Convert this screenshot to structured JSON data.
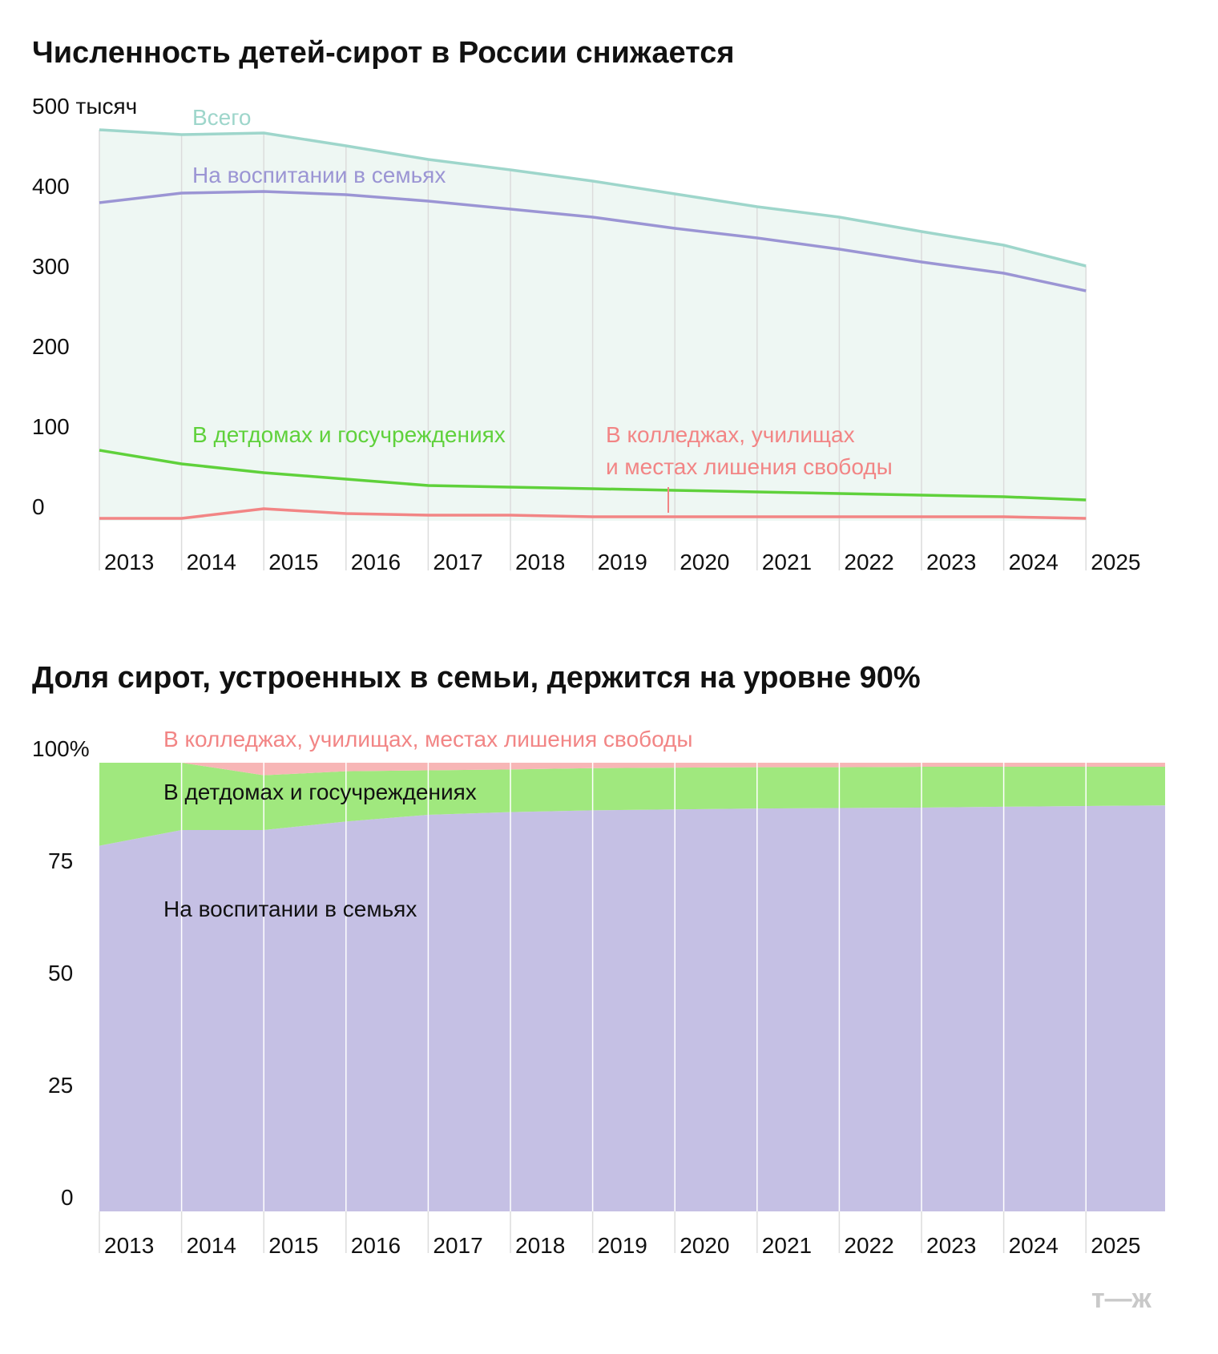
{
  "logo": "т—ж",
  "colors": {
    "total": "#9ed6cb",
    "families": "#9b95d4",
    "institutions": "#5fd13b",
    "colleges": "#f28585",
    "area_fill": "#eef7f3",
    "families_area": "#c5c0e4",
    "institutions_area": "#a0e87e",
    "colleges_area": "#f7b6b6",
    "grid": "#dcdcdc"
  },
  "chart_data": [
    {
      "type": "line",
      "title": "Численность детей-сирот в России снижается",
      "y_unit_label": "500 тысяч",
      "ylim": [
        0,
        500
      ],
      "y_ticks": [
        "0",
        "100",
        "200",
        "300",
        "400",
        "500 тысяч"
      ],
      "y_tick_values": [
        0,
        100,
        200,
        300,
        400,
        500
      ],
      "x": [
        "2013",
        "2014",
        "2015",
        "2016",
        "2017",
        "2018",
        "2019",
        "2020",
        "2021",
        "2022",
        "2023",
        "2024",
        "2025"
      ],
      "series": [
        {
          "key": "total",
          "name": "Всего",
          "color": "#9ed6cb",
          "values": [
            488,
            482,
            484,
            468,
            451,
            438,
            424,
            408,
            392,
            379,
            361,
            344,
            318
          ]
        },
        {
          "key": "families",
          "name": "На воспитании в семьях",
          "color": "#9b95d4",
          "values": [
            397,
            409,
            411,
            407,
            399,
            389,
            379,
            365,
            353,
            339,
            323,
            309,
            287
          ]
        },
        {
          "key": "institutions",
          "name": "В детдомах и госучреждениях",
          "color": "#5fd13b",
          "values": [
            88,
            71,
            60,
            52,
            44,
            42,
            40,
            38,
            36,
            34,
            32,
            30,
            26
          ]
        },
        {
          "key": "colleges",
          "name": "В колледжах, училищах\nи местах лишения свободы",
          "name_lines": [
            "В колледжах, училищах",
            "и местах лишения свободы"
          ],
          "color": "#f28585",
          "values": [
            3,
            3,
            15,
            9,
            7,
            7,
            5,
            5,
            5,
            5,
            5,
            5,
            3
          ]
        }
      ],
      "grid": true,
      "legend": "inline labels"
    },
    {
      "type": "area",
      "stacked": true,
      "title": "Доля сирот, устроенных в семьи, держится на уровне 90%",
      "ylim": [
        0,
        100
      ],
      "y_ticks": [
        "0",
        "25",
        "50",
        "75",
        "100%"
      ],
      "y_tick_values": [
        0,
        25,
        50,
        75,
        100
      ],
      "x": [
        "2013",
        "2014",
        "2015",
        "2016",
        "2017",
        "2018",
        "2019",
        "2020",
        "2021",
        "2022",
        "2023",
        "2024",
        "2025"
      ],
      "series": [
        {
          "key": "families",
          "name": "На воспитании в семьях",
          "color": "#c5c0e4",
          "values": [
            81.5,
            85,
            85,
            86.9,
            88.4,
            89,
            89.4,
            89.6,
            89.8,
            89.9,
            90,
            90.2,
            90.5
          ]
        },
        {
          "key": "institutions",
          "name": "В детдомах и госучреждениях",
          "color": "#a0e87e",
          "values": [
            18.5,
            15,
            12.2,
            11.2,
            9.9,
            9.5,
            9.4,
            9.3,
            9.2,
            9.1,
            9.1,
            8.9,
            8.6
          ]
        },
        {
          "key": "colleges",
          "name": "В колледжах, училищах, местах лишения свободы",
          "color": "#f7b6b6",
          "values": [
            0,
            0,
            2.8,
            1.9,
            1.7,
            1.5,
            1.2,
            1.1,
            1,
            1,
            0.9,
            0.9,
            0.9
          ]
        }
      ],
      "grid": true,
      "legend": "inline labels"
    }
  ]
}
